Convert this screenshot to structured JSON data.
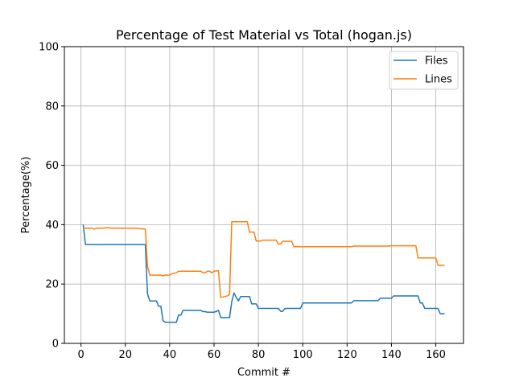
{
  "chart_data": {
    "type": "line",
    "title": "Percentage of Test Material vs Total (hogan.js)",
    "xlabel": "Commit #",
    "ylabel": "Percentage(%)",
    "xlim": [
      -7.5,
      172.5
    ],
    "ylim": [
      0,
      100
    ],
    "xticks": [
      "0",
      "20",
      "40",
      "60",
      "80",
      "100",
      "120",
      "140",
      "160"
    ],
    "yticks": [
      "0",
      "20",
      "40",
      "60",
      "80",
      "100"
    ],
    "grid": true,
    "legend_position": "top-right",
    "series": [
      {
        "name": "Files",
        "color": "#1f77b4",
        "points": [
          [
            1,
            40
          ],
          [
            2,
            33.3
          ],
          [
            29,
            33.3
          ],
          [
            30,
            16.7
          ],
          [
            31,
            14.3
          ],
          [
            34,
            14.3
          ],
          [
            35,
            12.5
          ],
          [
            36,
            12.5
          ],
          [
            37,
            7.7
          ],
          [
            38,
            7.1
          ],
          [
            43,
            7.1
          ],
          [
            44,
            9.5
          ],
          [
            45,
            9.5
          ],
          [
            46,
            11.1
          ],
          [
            54,
            11.1
          ],
          [
            55,
            10.7
          ],
          [
            56,
            10.7
          ],
          [
            57,
            10.5
          ],
          [
            60,
            10.5
          ],
          [
            62,
            11.1
          ],
          [
            63,
            8.7
          ],
          [
            67,
            8.7
          ],
          [
            68,
            14
          ],
          [
            69,
            17
          ],
          [
            70,
            15.5
          ],
          [
            71,
            14.3
          ],
          [
            72,
            15.8
          ],
          [
            76,
            15.8
          ],
          [
            77,
            13.3
          ],
          [
            79,
            13.3
          ],
          [
            80,
            11.8
          ],
          [
            89,
            11.8
          ],
          [
            90,
            10.8
          ],
          [
            91,
            10.8
          ],
          [
            92,
            11.8
          ],
          [
            99,
            11.8
          ],
          [
            100,
            13.6
          ],
          [
            122,
            13.6
          ],
          [
            123,
            14.4
          ],
          [
            134,
            14.4
          ],
          [
            135,
            15.2
          ],
          [
            140,
            15.2
          ],
          [
            141,
            16
          ],
          [
            152,
            16
          ],
          [
            153,
            13.6
          ],
          [
            154,
            13.6
          ],
          [
            155,
            11.8
          ],
          [
            161,
            11.8
          ],
          [
            162,
            10
          ],
          [
            164,
            10
          ]
        ]
      },
      {
        "name": "Lines",
        "color": "#ff7f0e",
        "points": [
          [
            1,
            38.8
          ],
          [
            5,
            38.8
          ],
          [
            6,
            38.5
          ],
          [
            7,
            38.8
          ],
          [
            10,
            38.8
          ],
          [
            12,
            39
          ],
          [
            14,
            38.8
          ],
          [
            22,
            38.8
          ],
          [
            24,
            38.8
          ],
          [
            29,
            38.5
          ],
          [
            30,
            26
          ],
          [
            31,
            23
          ],
          [
            36,
            23
          ],
          [
            37,
            22.8
          ],
          [
            38,
            23
          ],
          [
            40,
            23
          ],
          [
            41,
            23.5
          ],
          [
            43,
            23.8
          ],
          [
            44,
            24.3
          ],
          [
            54,
            24.3
          ],
          [
            55,
            23.8
          ],
          [
            56,
            23.8
          ],
          [
            57,
            24.3
          ],
          [
            58,
            24.3
          ],
          [
            59,
            23.8
          ],
          [
            60,
            24.3
          ],
          [
            62,
            24.5
          ],
          [
            63,
            15.5
          ],
          [
            65,
            15.8
          ],
          [
            66,
            16
          ],
          [
            67,
            16.5
          ],
          [
            68,
            41
          ],
          [
            75,
            41
          ],
          [
            76,
            37.5
          ],
          [
            78,
            37.5
          ],
          [
            79,
            34.5
          ],
          [
            81,
            34.5
          ],
          [
            82,
            34.8
          ],
          [
            88,
            34.8
          ],
          [
            89,
            33.5
          ],
          [
            90,
            33.5
          ],
          [
            91,
            34.4
          ],
          [
            95,
            34.4
          ],
          [
            96,
            32.6
          ],
          [
            122,
            32.6
          ],
          [
            123,
            32.8
          ],
          [
            139,
            32.8
          ],
          [
            140,
            32.9
          ],
          [
            151,
            32.9
          ],
          [
            152,
            28.8
          ],
          [
            160,
            28.8
          ],
          [
            161,
            26.3
          ],
          [
            164,
            26.3
          ]
        ]
      }
    ]
  }
}
